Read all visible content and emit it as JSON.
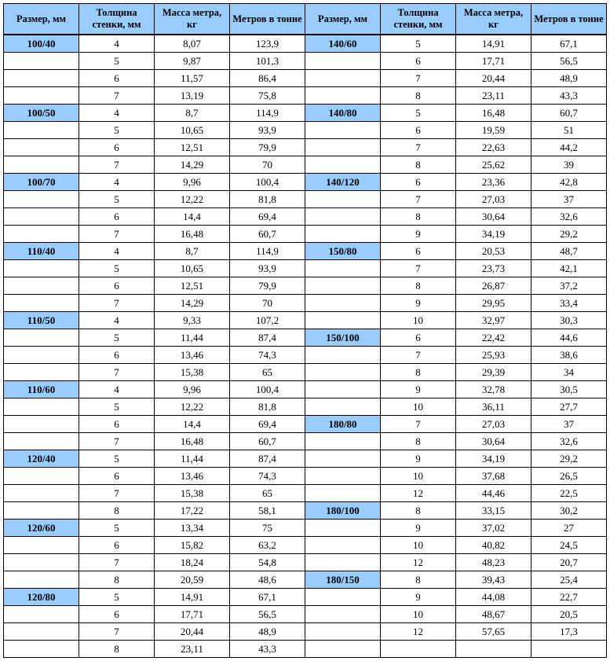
{
  "headers": [
    "Размер, мм",
    "Толщина стенки, мм",
    "Масса метра, кг",
    "Метров в тонне",
    "Размер, мм",
    "Толщина стенки, мм",
    "Масса метра, кг",
    "Метров в тонне"
  ],
  "rows": [
    {
      "l": {
        "size": "100/40",
        "t": "4",
        "m": "8,07",
        "mt": "123,9"
      },
      "r": {
        "size": "140/60",
        "t": "5",
        "m": "14,91",
        "mt": "67,1"
      }
    },
    {
      "l": {
        "size": "",
        "t": "5",
        "m": "9,87",
        "mt": "101,3"
      },
      "r": {
        "size": "",
        "t": "6",
        "m": "17,71",
        "mt": "56,5"
      }
    },
    {
      "l": {
        "size": "",
        "t": "6",
        "m": "11,57",
        "mt": "86,4"
      },
      "r": {
        "size": "",
        "t": "7",
        "m": "20,44",
        "mt": "48,9"
      }
    },
    {
      "l": {
        "size": "",
        "t": "7",
        "m": "13,19",
        "mt": "75,8"
      },
      "r": {
        "size": "",
        "t": "8",
        "m": "23,11",
        "mt": "43,3"
      }
    },
    {
      "l": {
        "size": "100/50",
        "t": "4",
        "m": "8,7",
        "mt": "114,9"
      },
      "r": {
        "size": "140/80",
        "t": "5",
        "m": "16,48",
        "mt": "60,7"
      }
    },
    {
      "l": {
        "size": "",
        "t": "5",
        "m": "10,65",
        "mt": "93,9"
      },
      "r": {
        "size": "",
        "t": "6",
        "m": "19,59",
        "mt": "51"
      }
    },
    {
      "l": {
        "size": "",
        "t": "6",
        "m": "12,51",
        "mt": "79,9"
      },
      "r": {
        "size": "",
        "t": "7",
        "m": "22,63",
        "mt": "44,2"
      }
    },
    {
      "l": {
        "size": "",
        "t": "7",
        "m": "14,29",
        "mt": "70"
      },
      "r": {
        "size": "",
        "t": "8",
        "m": "25,62",
        "mt": "39"
      }
    },
    {
      "l": {
        "size": "100/70",
        "t": "4",
        "m": "9,96",
        "mt": "100,4"
      },
      "r": {
        "size": "140/120",
        "t": "6",
        "m": "23,36",
        "mt": "42,8"
      }
    },
    {
      "l": {
        "size": "",
        "t": "5",
        "m": "12,22",
        "mt": "81,8"
      },
      "r": {
        "size": "",
        "t": "7",
        "m": "27,03",
        "mt": "37"
      }
    },
    {
      "l": {
        "size": "",
        "t": "6",
        "m": "14,4",
        "mt": "69,4"
      },
      "r": {
        "size": "",
        "t": "8",
        "m": "30,64",
        "mt": "32,6"
      }
    },
    {
      "l": {
        "size": "",
        "t": "7",
        "m": "16,48",
        "mt": "60,7"
      },
      "r": {
        "size": "",
        "t": "9",
        "m": "34,19",
        "mt": "29,2"
      }
    },
    {
      "l": {
        "size": "110/40",
        "t": "4",
        "m": "8,7",
        "mt": "114,9"
      },
      "r": {
        "size": "150/80",
        "t": "6",
        "m": "20,53",
        "mt": "48,7"
      }
    },
    {
      "l": {
        "size": "",
        "t": "5",
        "m": "10,65",
        "mt": "93,9"
      },
      "r": {
        "size": "",
        "t": "7",
        "m": "23,73",
        "mt": "42,1"
      }
    },
    {
      "l": {
        "size": "",
        "t": "6",
        "m": "12,51",
        "mt": "79,9"
      },
      "r": {
        "size": "",
        "t": "8",
        "m": "26,87",
        "mt": "37,2"
      }
    },
    {
      "l": {
        "size": "",
        "t": "7",
        "m": "14,29",
        "mt": "70"
      },
      "r": {
        "size": "",
        "t": "9",
        "m": "29,95",
        "mt": "33,4"
      }
    },
    {
      "l": {
        "size": "110/50",
        "t": "4",
        "m": "9,33",
        "mt": "107,2"
      },
      "r": {
        "size": "",
        "t": "10",
        "m": "32,97",
        "mt": "30,3"
      }
    },
    {
      "l": {
        "size": "",
        "t": "5",
        "m": "11,44",
        "mt": "87,4"
      },
      "r": {
        "size": "150/100",
        "t": "6",
        "m": "22,42",
        "mt": "44,6"
      }
    },
    {
      "l": {
        "size": "",
        "t": "6",
        "m": "13,46",
        "mt": "74,3"
      },
      "r": {
        "size": "",
        "t": "7",
        "m": "25,93",
        "mt": "38,6"
      }
    },
    {
      "l": {
        "size": "",
        "t": "7",
        "m": "15,38",
        "mt": "65"
      },
      "r": {
        "size": "",
        "t": "8",
        "m": "29,39",
        "mt": "34"
      }
    },
    {
      "l": {
        "size": "110/60",
        "t": "4",
        "m": "9,96",
        "mt": "100,4"
      },
      "r": {
        "size": "",
        "t": "9",
        "m": "32,78",
        "mt": "30,5"
      }
    },
    {
      "l": {
        "size": "",
        "t": "5",
        "m": "12,22",
        "mt": "81,8"
      },
      "r": {
        "size": "",
        "t": "10",
        "m": "36,11",
        "mt": "27,7"
      }
    },
    {
      "l": {
        "size": "",
        "t": "6",
        "m": "14,4",
        "mt": "69,4"
      },
      "r": {
        "size": "180/80",
        "t": "7",
        "m": "27,03",
        "mt": "37"
      }
    },
    {
      "l": {
        "size": "",
        "t": "7",
        "m": "16,48",
        "mt": "60,7"
      },
      "r": {
        "size": "",
        "t": "8",
        "m": "30,64",
        "mt": "32,6"
      }
    },
    {
      "l": {
        "size": "120/40",
        "t": "5",
        "m": "11,44",
        "mt": "87,4"
      },
      "r": {
        "size": "",
        "t": "9",
        "m": "34,19",
        "mt": "29,2"
      }
    },
    {
      "l": {
        "size": "",
        "t": "6",
        "m": "13,46",
        "mt": "74,3"
      },
      "r": {
        "size": "",
        "t": "10",
        "m": "37,68",
        "mt": "26,5"
      }
    },
    {
      "l": {
        "size": "",
        "t": "7",
        "m": "15,38",
        "mt": "65"
      },
      "r": {
        "size": "",
        "t": "12",
        "m": "44,46",
        "mt": "22,5"
      }
    },
    {
      "l": {
        "size": "",
        "t": "8",
        "m": "17,22",
        "mt": "58,1"
      },
      "r": {
        "size": "180/100",
        "t": "8",
        "m": "33,15",
        "mt": "30,2"
      }
    },
    {
      "l": {
        "size": "120/60",
        "t": "5",
        "m": "13,34",
        "mt": "75"
      },
      "r": {
        "size": "",
        "t": "9",
        "m": "37,02",
        "mt": "27"
      }
    },
    {
      "l": {
        "size": "",
        "t": "6",
        "m": "15,82",
        "mt": "63,2"
      },
      "r": {
        "size": "",
        "t": "10",
        "m": "40,82",
        "mt": "24,5"
      }
    },
    {
      "l": {
        "size": "",
        "t": "7",
        "m": "18,24",
        "mt": "54,8"
      },
      "r": {
        "size": "",
        "t": "12",
        "m": "48,23",
        "mt": "20,7"
      }
    },
    {
      "l": {
        "size": "",
        "t": "8",
        "m": "20,59",
        "mt": "48,6"
      },
      "r": {
        "size": "180/150",
        "t": "8",
        "m": "39,43",
        "mt": "25,4"
      }
    },
    {
      "l": {
        "size": "120/80",
        "t": "5",
        "m": "14,91",
        "mt": "67,1"
      },
      "r": {
        "size": "",
        "t": "9",
        "m": "44,08",
        "mt": "22,7"
      }
    },
    {
      "l": {
        "size": "",
        "t": "6",
        "m": "17,71",
        "mt": "56,5"
      },
      "r": {
        "size": "",
        "t": "10",
        "m": "48,67",
        "mt": "20,5"
      }
    },
    {
      "l": {
        "size": "",
        "t": "7",
        "m": "20,44",
        "mt": "48,9"
      },
      "r": {
        "size": "",
        "t": "12",
        "m": "57,65",
        "mt": "17,3"
      }
    },
    {
      "l": {
        "size": "",
        "t": "8",
        "m": "23,11",
        "mt": "43,3"
      },
      "r": {
        "size": "",
        "t": "",
        "m": "",
        "mt": ""
      }
    }
  ],
  "colors": {
    "header_bg": "#99ccff",
    "size_bg": "#99ccff",
    "border": "#000000",
    "background": "#ffffff"
  }
}
